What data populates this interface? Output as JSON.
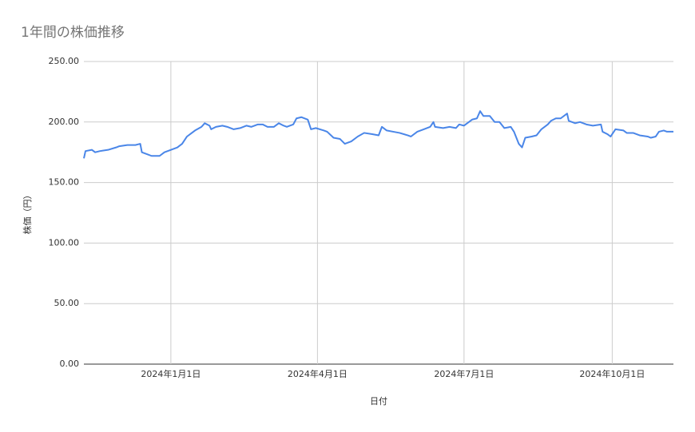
{
  "chart_data": {
    "type": "line",
    "title": "1年間の株価推移",
    "x_label": "日付",
    "y_label": "株価（円）",
    "x": [
      "2023-11-08",
      "2023-11-09",
      "2023-11-13",
      "2023-11-15",
      "2023-11-18",
      "2023-11-23",
      "2023-11-28",
      "2023-11-30",
      "2023-12-05",
      "2023-12-10",
      "2023-12-13",
      "2023-12-14",
      "2023-12-18",
      "2023-12-20",
      "2023-12-25",
      "2023-12-28",
      "2024-01-01",
      "2024-01-05",
      "2024-01-08",
      "2024-01-11",
      "2024-01-14",
      "2024-01-16",
      "2024-01-20",
      "2024-01-22",
      "2024-01-25",
      "2024-01-26",
      "2024-01-29",
      "2024-02-02",
      "2024-02-05",
      "2024-02-09",
      "2024-02-13",
      "2024-02-17",
      "2024-02-20",
      "2024-02-24",
      "2024-02-27",
      "2024-03-01",
      "2024-03-05",
      "2024-03-08",
      "2024-03-11",
      "2024-03-13",
      "2024-03-17",
      "2024-03-19",
      "2024-03-22",
      "2024-03-26",
      "2024-03-28",
      "2024-03-31",
      "2024-04-05",
      "2024-04-07",
      "2024-04-11",
      "2024-04-15",
      "2024-04-18",
      "2024-04-22",
      "2024-04-26",
      "2024-04-30",
      "2024-05-05",
      "2024-05-09",
      "2024-05-11",
      "2024-05-14",
      "2024-05-18",
      "2024-05-22",
      "2024-05-27",
      "2024-05-29",
      "2024-06-02",
      "2024-06-06",
      "2024-06-10",
      "2024-06-12",
      "2024-06-13",
      "2024-06-18",
      "2024-06-22",
      "2024-06-26",
      "2024-06-28",
      "2024-07-01",
      "2024-07-06",
      "2024-07-09",
      "2024-07-11",
      "2024-07-13",
      "2024-07-17",
      "2024-07-20",
      "2024-07-23",
      "2024-07-26",
      "2024-07-30",
      "2024-08-01",
      "2024-08-04",
      "2024-08-06",
      "2024-08-08",
      "2024-08-12",
      "2024-08-15",
      "2024-08-18",
      "2024-08-22",
      "2024-08-24",
      "2024-08-27",
      "2024-08-30",
      "2024-09-03",
      "2024-09-04",
      "2024-09-08",
      "2024-09-11",
      "2024-09-15",
      "2024-09-19",
      "2024-09-24",
      "2024-09-25",
      "2024-09-28",
      "2024-09-30",
      "2024-10-03",
      "2024-10-08",
      "2024-10-10",
      "2024-10-14",
      "2024-10-18",
      "2024-10-23",
      "2024-10-25",
      "2024-10-28",
      "2024-10-30",
      "2024-11-02",
      "2024-11-04",
      "2024-11-08"
    ],
    "series": [
      {
        "name": "株価",
        "color": "#4a86e8",
        "values": [
          170,
          176,
          177,
          175,
          176,
          177,
          179,
          180,
          181,
          181,
          182,
          175,
          173,
          172,
          172,
          175,
          177,
          179,
          182,
          188,
          191,
          193,
          196,
          199,
          197,
          194,
          196,
          197,
          196,
          194,
          195,
          197,
          196,
          198,
          198,
          196,
          196,
          199,
          197,
          196,
          198,
          203,
          204,
          202,
          194,
          195,
          193,
          192,
          187,
          186,
          182,
          184,
          188,
          191,
          190,
          189,
          196,
          193,
          192,
          191,
          189,
          188,
          192,
          194,
          196,
          200,
          196,
          195,
          196,
          195,
          198,
          197,
          202,
          203,
          209,
          205,
          205,
          200,
          200,
          195,
          196,
          192,
          182,
          179,
          187,
          188,
          189,
          194,
          198,
          201,
          203,
          203,
          207,
          201,
          199,
          200,
          198,
          197,
          198,
          192,
          190,
          188,
          194,
          193,
          191,
          191,
          189,
          188,
          187,
          188,
          192,
          193,
          192,
          192
        ]
      }
    ],
    "xlim": [
      "2023-11-08",
      "2024-11-08"
    ],
    "xticks": [
      {
        "value": "2024-01-01",
        "label": "2024年1月1日"
      },
      {
        "value": "2024-04-01",
        "label": "2024年4月1日"
      },
      {
        "value": "2024-07-01",
        "label": "2024年7月1日"
      },
      {
        "value": "2024-10-01",
        "label": "2024年10月1日"
      }
    ],
    "ylim": [
      0,
      250
    ],
    "yticks": [
      {
        "value": 0,
        "label": "0.00"
      },
      {
        "value": 50,
        "label": "50.00"
      },
      {
        "value": 100,
        "label": "100.00"
      },
      {
        "value": 150,
        "label": "150.00"
      },
      {
        "value": 200,
        "label": "200.00"
      },
      {
        "value": 250,
        "label": "250.00"
      }
    ],
    "grid": true
  }
}
